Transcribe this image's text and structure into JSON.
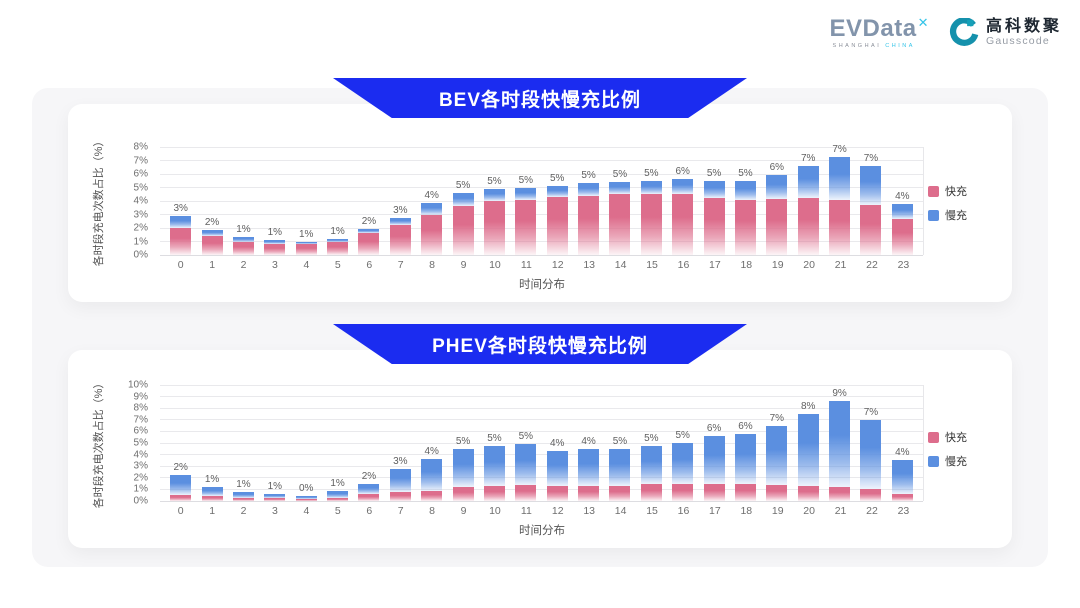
{
  "logo": {
    "evdata_text": "EVData",
    "evdata_sup": "✕",
    "tagline_left": "SHANGHAI",
    "tagline_right": "CHINA",
    "gausscode_cn": "高科数聚",
    "gausscode_en": "Gausscode"
  },
  "colors": {
    "banner_blue": "#1b2cf0",
    "fast_pink": "#dd6d8c",
    "slow_blue": "#5b8fe0",
    "card_bg": "#ffffff",
    "panel_bg": "#f6f6f8"
  },
  "chart_data": [
    {
      "type": "bar",
      "stacked": true,
      "title": "BEV各时段快慢充比例",
      "xlabel": "时间分布",
      "ylabel": "各时段充电次数占比（%）",
      "ylim": [
        0,
        8
      ],
      "yticks": [
        "0%",
        "1%",
        "2%",
        "3%",
        "4%",
        "5%",
        "6%",
        "7%",
        "8%"
      ],
      "grid": true,
      "legend_position": "right",
      "categories": [
        0,
        1,
        2,
        3,
        4,
        5,
        6,
        7,
        8,
        9,
        10,
        11,
        12,
        13,
        14,
        15,
        16,
        17,
        18,
        19,
        20,
        21,
        22,
        23
      ],
      "series": [
        {
          "name": "快充",
          "color": "#dd6d8c",
          "values": [
            2.0,
            1.4,
            1.0,
            0.85,
            0.85,
            1.0,
            1.6,
            2.2,
            3.0,
            3.6,
            4.0,
            4.1,
            4.3,
            4.4,
            4.5,
            4.5,
            4.5,
            4.25,
            4.1,
            4.15,
            4.2,
            4.05,
            3.7,
            2.7
          ]
        },
        {
          "name": "慢充",
          "color": "#5b8fe0",
          "values": [
            0.9,
            0.45,
            0.3,
            0.25,
            0.1,
            0.2,
            0.3,
            0.55,
            0.85,
            1.0,
            0.9,
            0.9,
            0.8,
            0.9,
            0.9,
            0.95,
            1.1,
            1.2,
            1.35,
            1.8,
            2.4,
            3.2,
            2.9,
            1.1
          ]
        }
      ],
      "bar_labels": [
        "3%",
        "2%",
        "1%",
        "1%",
        "1%",
        "1%",
        "2%",
        "3%",
        "4%",
        "5%",
        "5%",
        "5%",
        "5%",
        "5%",
        "5%",
        "5%",
        "6%",
        "5%",
        "5%",
        "6%",
        "7%",
        "7%",
        "7%",
        "4%"
      ]
    },
    {
      "type": "bar",
      "stacked": true,
      "title": "PHEV各时段快慢充比例",
      "xlabel": "时间分布",
      "ylabel": "各时段充电次数占比（%）",
      "ylim": [
        0,
        10
      ],
      "yticks": [
        "0%",
        "1%",
        "2%",
        "3%",
        "4%",
        "5%",
        "6%",
        "7%",
        "8%",
        "9%",
        "10%"
      ],
      "grid": true,
      "legend_position": "right",
      "categories": [
        0,
        1,
        2,
        3,
        4,
        5,
        6,
        7,
        8,
        9,
        10,
        11,
        12,
        13,
        14,
        15,
        16,
        17,
        18,
        19,
        20,
        21,
        22,
        23
      ],
      "series": [
        {
          "name": "快充",
          "color": "#dd6d8c",
          "values": [
            0.5,
            0.4,
            0.3,
            0.25,
            0.2,
            0.3,
            0.6,
            0.75,
            0.9,
            1.2,
            1.3,
            1.4,
            1.3,
            1.3,
            1.3,
            1.5,
            1.5,
            1.5,
            1.5,
            1.4,
            1.3,
            1.2,
            1.0,
            0.6
          ]
        },
        {
          "name": "慢充",
          "color": "#5b8fe0",
          "values": [
            1.75,
            0.8,
            0.5,
            0.35,
            0.25,
            0.55,
            0.9,
            2.05,
            2.7,
            3.3,
            3.4,
            3.5,
            3.05,
            3.15,
            3.2,
            3.25,
            3.5,
            4.1,
            4.3,
            5.1,
            6.2,
            7.4,
            6.0,
            2.9
          ]
        }
      ],
      "bar_labels": [
        "2%",
        "1%",
        "1%",
        "1%",
        "0%",
        "1%",
        "2%",
        "3%",
        "4%",
        "5%",
        "5%",
        "5%",
        "4%",
        "4%",
        "5%",
        "5%",
        "5%",
        "6%",
        "6%",
        "7%",
        "8%",
        "9%",
        "7%",
        "4%"
      ]
    }
  ]
}
